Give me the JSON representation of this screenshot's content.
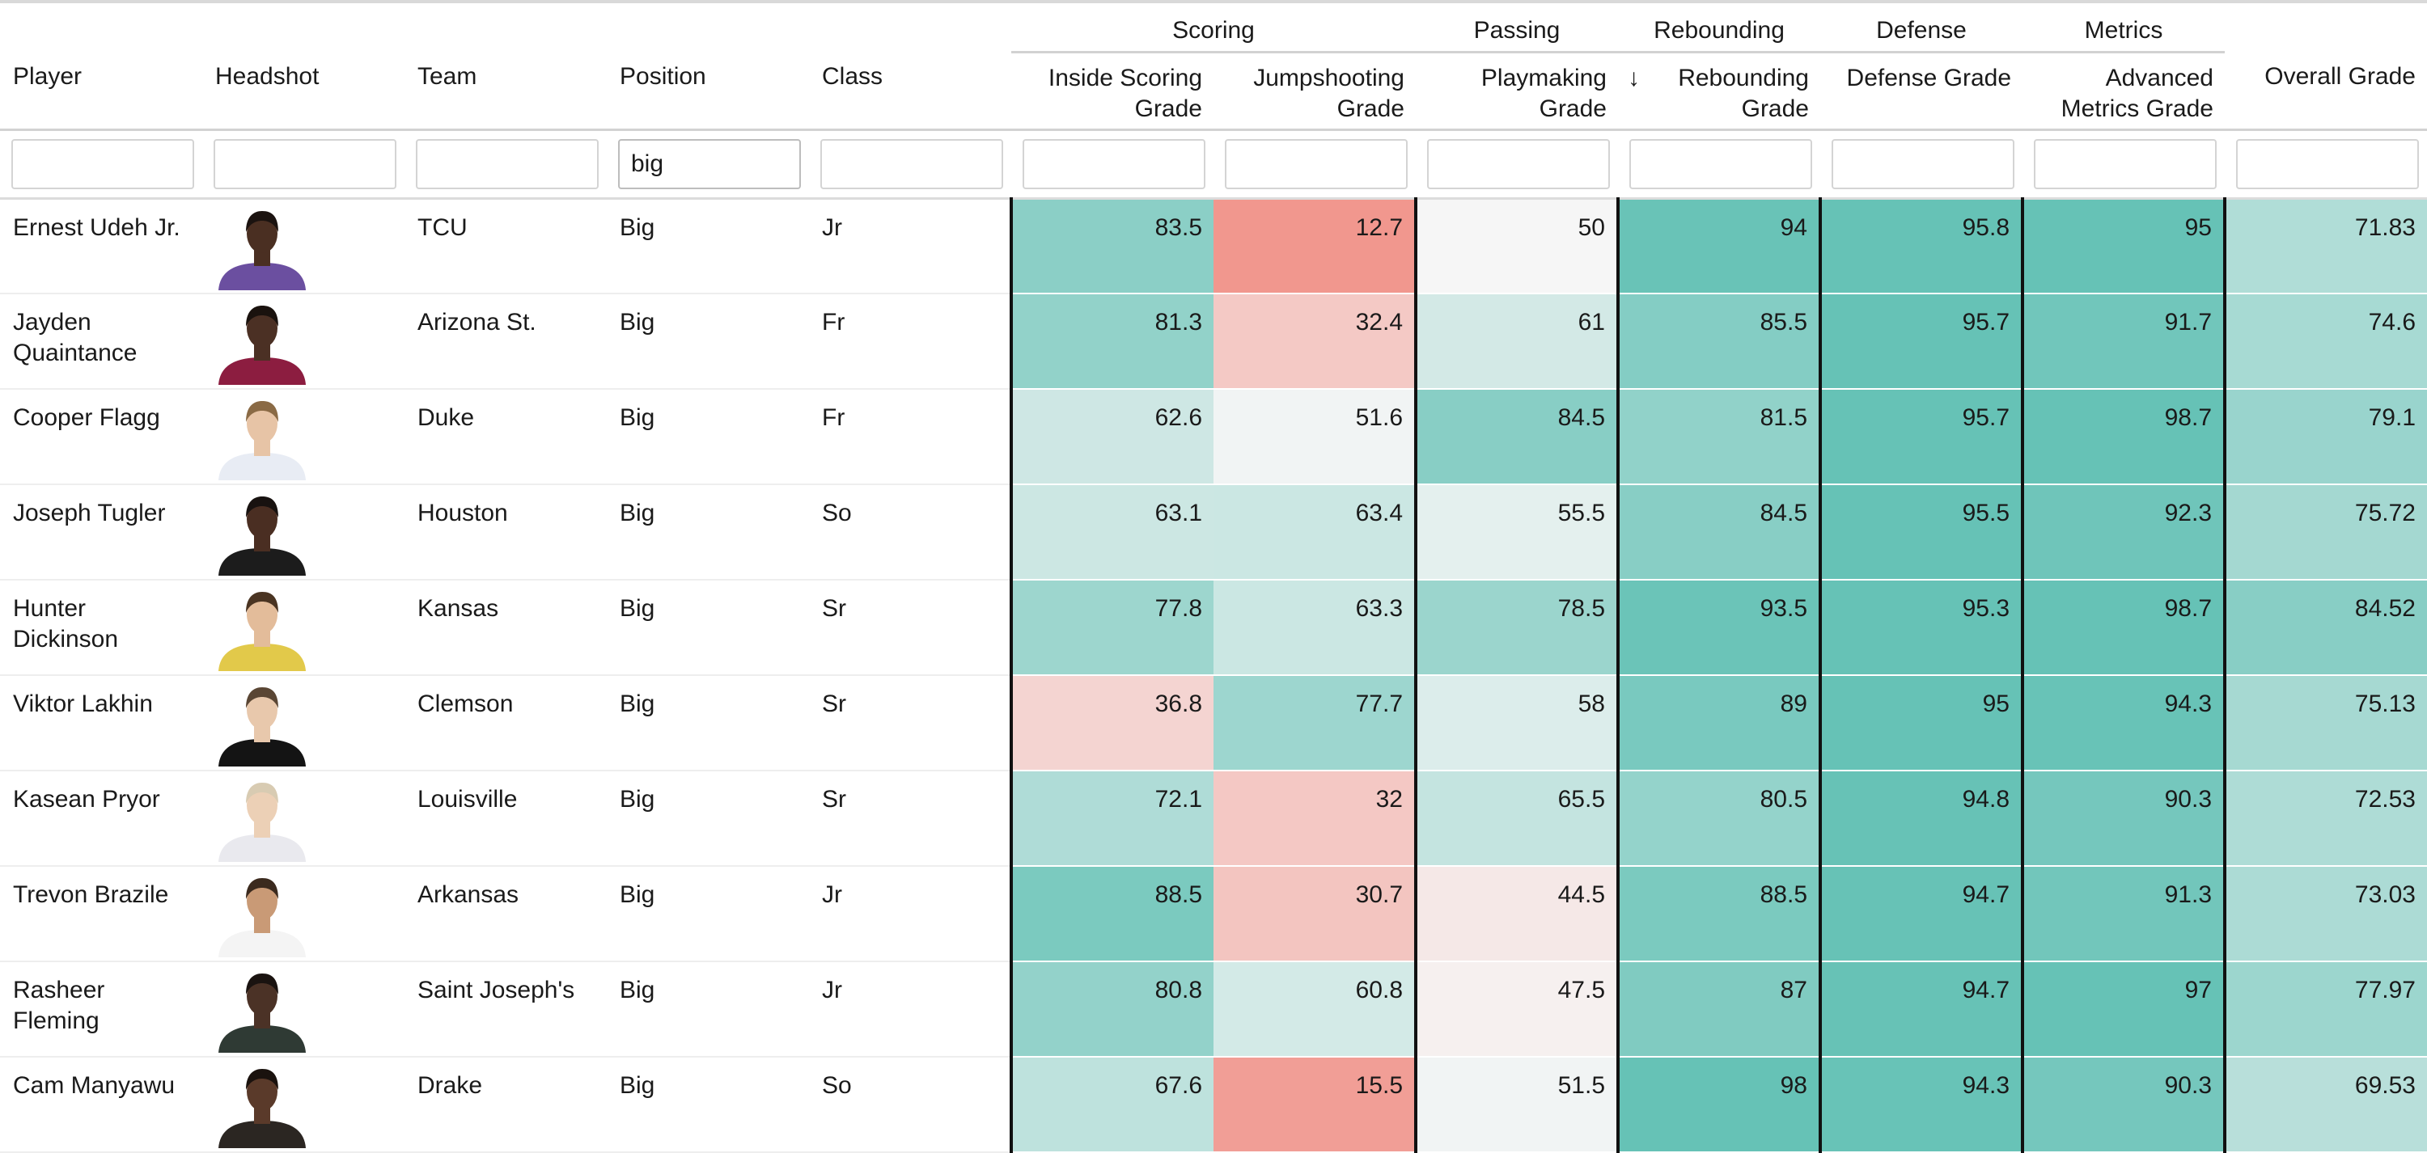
{
  "groups": [
    {
      "label": "",
      "span": 5
    },
    {
      "label": "Scoring",
      "span": 2
    },
    {
      "label": "Passing",
      "span": 1
    },
    {
      "label": "Rebounding",
      "span": 1
    },
    {
      "label": "Defense",
      "span": 1
    },
    {
      "label": "Metrics",
      "span": 1
    },
    {
      "label": "",
      "span": 1
    }
  ],
  "columns": {
    "player": "Player",
    "headshot": "Headshot",
    "team": "Team",
    "position": "Position",
    "class": "Class",
    "inside": "Inside Scoring Grade",
    "jump": "Jumpshooting Grade",
    "play": "Playmaking Grade",
    "reb": "Rebounding Grade",
    "def": "Defense Grade",
    "adv": "Advanced Metrics Grade",
    "overall": "Overall Grade",
    "sort_indicator": "↓"
  },
  "filters": {
    "player": "",
    "headshot": "",
    "team": "",
    "position": "big",
    "class": "",
    "inside": "",
    "jump": "",
    "play": "",
    "reb": "",
    "def": "",
    "adv": "",
    "overall": ""
  },
  "rows": [
    {
      "player": "Ernest Udeh Jr.",
      "team": "TCU",
      "position": "Big",
      "class": "Jr",
      "inside": "83.5",
      "jump": "12.7",
      "play": "50",
      "reb": "94",
      "def": "95.8",
      "adv": "95",
      "overall": "71.83",
      "jersey": "#6b4fa0",
      "skin": "#4a2f22",
      "hair": "#1b1310"
    },
    {
      "player": "Jayden Quaintance",
      "team": "Arizona St.",
      "position": "Big",
      "class": "Fr",
      "inside": "81.3",
      "jump": "32.4",
      "play": "61",
      "reb": "85.5",
      "def": "95.7",
      "adv": "91.7",
      "overall": "74.6",
      "jersey": "#8c1d40",
      "skin": "#4b3024",
      "hair": "#1a120e"
    },
    {
      "player": "Cooper Flagg",
      "team": "Duke",
      "position": "Big",
      "class": "Fr",
      "inside": "62.6",
      "jump": "51.6",
      "play": "84.5",
      "reb": "81.5",
      "def": "95.7",
      "adv": "98.7",
      "overall": "79.1",
      "jersey": "#e8ecf4",
      "skin": "#e7c4a6",
      "hair": "#8a6a45"
    },
    {
      "player": "Joseph Tugler",
      "team": "Houston",
      "position": "Big",
      "class": "So",
      "inside": "63.1",
      "jump": "63.4",
      "play": "55.5",
      "reb": "84.5",
      "def": "95.5",
      "adv": "92.3",
      "overall": "75.72",
      "jersey": "#1c1c1c",
      "skin": "#4a2e22",
      "hair": "#181210"
    },
    {
      "player": "Hunter Dickinson",
      "team": "Kansas",
      "position": "Big",
      "class": "Sr",
      "inside": "77.8",
      "jump": "63.3",
      "play": "78.5",
      "reb": "93.5",
      "def": "95.3",
      "adv": "98.7",
      "overall": "84.52",
      "jersey": "#e2c94a",
      "skin": "#e3bc9a",
      "hair": "#4a3422"
    },
    {
      "player": "Viktor Lakhin",
      "team": "Clemson",
      "position": "Big",
      "class": "Sr",
      "inside": "36.8",
      "jump": "77.7",
      "play": "58",
      "reb": "89",
      "def": "95",
      "adv": "94.3",
      "overall": "75.13",
      "jersey": "#141414",
      "skin": "#e8c8ac",
      "hair": "#5a4634"
    },
    {
      "player": "Kasean Pryor",
      "team": "Louisville",
      "position": "Big",
      "class": "Sr",
      "inside": "72.1",
      "jump": "32",
      "play": "65.5",
      "reb": "80.5",
      "def": "94.8",
      "adv": "90.3",
      "overall": "72.53",
      "jersey": "#e9e9ee",
      "skin": "#ecd0b6",
      "hair": "#d8cbb2"
    },
    {
      "player": "Trevon Brazile",
      "team": "Arkansas",
      "position": "Big",
      "class": "Jr",
      "inside": "88.5",
      "jump": "30.7",
      "play": "44.5",
      "reb": "88.5",
      "def": "94.7",
      "adv": "91.3",
      "overall": "73.03",
      "jersey": "#f4f4f4",
      "skin": "#c99a76",
      "hair": "#3b2a1e"
    },
    {
      "player": "Rasheer Fleming",
      "team": "Saint Joseph's",
      "position": "Big",
      "class": "Jr",
      "inside": "80.8",
      "jump": "60.8",
      "play": "47.5",
      "reb": "87",
      "def": "94.7",
      "adv": "97",
      "overall": "77.97",
      "jersey": "#2f3a34",
      "skin": "#4b3226",
      "hair": "#1a1310"
    },
    {
      "player": "Cam Manyawu",
      "team": "Drake",
      "position": "Big",
      "class": "So",
      "inside": "67.6",
      "jump": "15.5",
      "play": "51.5",
      "reb": "98",
      "def": "94.3",
      "adv": "90.3",
      "overall": "69.53",
      "jersey": "#2b2622",
      "skin": "#5a3a2a",
      "hair": "#1a120e"
    }
  ],
  "colors": {
    "teal_high": "#66c2b6",
    "white_mid": "#f6f6f6",
    "red_low": "#f1958c",
    "separator": "#111111"
  }
}
